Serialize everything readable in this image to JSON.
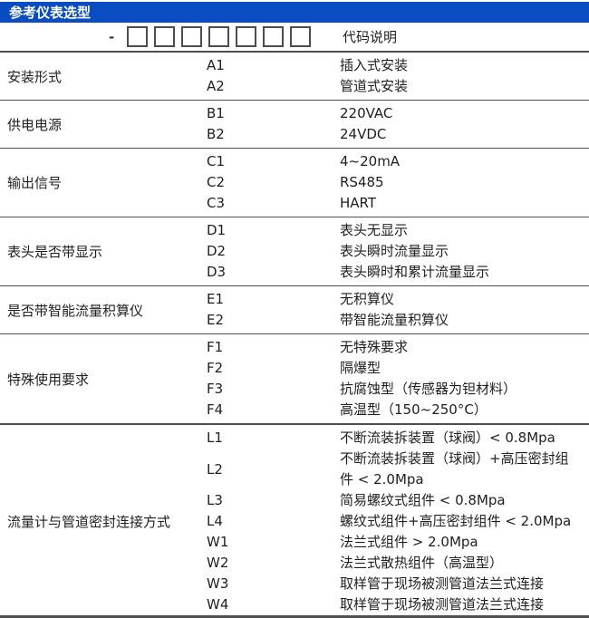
{
  "title": "参考仪表选型",
  "model_code_row": {
    "dash": "-",
    "box_count": 7,
    "description_header": "代码说明"
  },
  "colors": {
    "header_bg": "#0a4dc2",
    "header_text": "#ffffff",
    "body_text": "#1f1f1f",
    "divider_line": "#4f4f4f"
  },
  "groups": [
    {
      "label": "安装形式",
      "items": [
        {
          "code": "A1",
          "desc": "插入式安装"
        },
        {
          "code": "A2",
          "desc": "管道式安装"
        }
      ]
    },
    {
      "label": "供电电源",
      "items": [
        {
          "code": "B1",
          "desc": "220VAC"
        },
        {
          "code": "B2",
          "desc": "24VDC"
        }
      ]
    },
    {
      "label": "输出信号",
      "items": [
        {
          "code": "C1",
          "desc": "4~20mA"
        },
        {
          "code": "C2",
          "desc": "RS485"
        },
        {
          "code": "C3",
          "desc": "HART"
        }
      ]
    },
    {
      "label": "表头是否带显示",
      "items": [
        {
          "code": "D1",
          "desc": "表头无显示"
        },
        {
          "code": "D2",
          "desc": "表头瞬时流量显示"
        },
        {
          "code": "D3",
          "desc": "表头瞬时和累计流量显示"
        }
      ]
    },
    {
      "label": "是否带智能流量积算仪",
      "items": [
        {
          "code": "E1",
          "desc": "无积算仪"
        },
        {
          "code": "E2",
          "desc": "带智能流量积算仪"
        }
      ]
    },
    {
      "label": "特殊使用要求",
      "items": [
        {
          "code": "F1",
          "desc": "无特殊要求"
        },
        {
          "code": "F2",
          "desc": "隔爆型"
        },
        {
          "code": "F3",
          "desc": "抗腐蚀型（传感器为钽材料）"
        },
        {
          "code": "F4",
          "desc": "高温型（150~250°C）"
        }
      ]
    },
    {
      "label": "流量计与管道密封连接方式",
      "items": [
        {
          "code": "L1",
          "desc": "不断流装拆装置（球阀）< 0.8Mpa"
        },
        {
          "code": "L2",
          "desc": "不断流装拆装置（球阀）+高压密封组件 < 2.0Mpa"
        },
        {
          "code": "L3",
          "desc": "简易螺纹式组件 < 0.8Mpa"
        },
        {
          "code": "L4",
          "desc": "螺纹式组件+高压密封组件 < 2.0Mpa"
        },
        {
          "code": "W1",
          "desc": "法兰式组件 > 2.0Mpa"
        },
        {
          "code": "W2",
          "desc": "法兰式散热组件（高温型）"
        },
        {
          "code": "W3",
          "desc": "取样管于现场被测管道法兰式连接"
        },
        {
          "code": "W4",
          "desc": "取样管于现场被测管道法兰式连接"
        }
      ]
    }
  ]
}
